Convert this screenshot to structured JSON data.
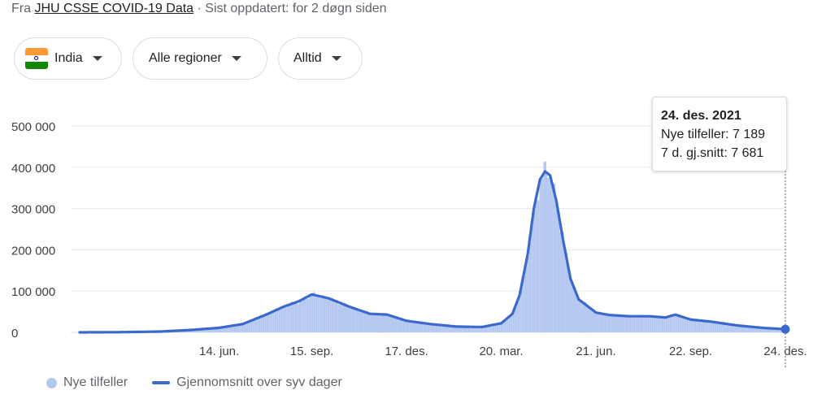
{
  "source": {
    "prefix": "Fra",
    "link": "JHU CSSE COVID-19 Data",
    "suffix": "· Sist oppdatert: for 2 døgn siden"
  },
  "filters": {
    "country": "India",
    "region": "Alle regioner",
    "period": "Alltid"
  },
  "colors": {
    "bars": "#b3c7f0",
    "line": "#3a68cc",
    "grid": "#e8eaed"
  },
  "tooltip": {
    "date": "24. des. 2021",
    "cases_label": "Nye tilfeller: 7 189",
    "avg_label": "7 d. gj.snitt: 7 681"
  },
  "legend": {
    "bars_label": "Nye tilfeller",
    "line_label": "Gjennomsnitt over syv dager"
  },
  "chart_data": {
    "type": "area",
    "title": "",
    "xlabel": "",
    "ylabel": "",
    "ylim": [
      0,
      500000
    ],
    "y_ticks": [
      {
        "value": 0,
        "label": "0"
      },
      {
        "value": 100000,
        "label": "100 000"
      },
      {
        "value": 200000,
        "label": "200 000"
      },
      {
        "value": 300000,
        "label": "300 000"
      },
      {
        "value": 400000,
        "label": "400 000"
      },
      {
        "value": 500000,
        "label": "500 000"
      }
    ],
    "x_ticks": [
      {
        "day": 137,
        "label": "14. jun."
      },
      {
        "day": 228,
        "label": "15. sep."
      },
      {
        "day": 321,
        "label": "17. des."
      },
      {
        "day": 414,
        "label": "20. mar."
      },
      {
        "day": 507,
        "label": "21. jun."
      },
      {
        "day": 600,
        "label": "22. sep."
      },
      {
        "day": 693,
        "label": "24. des."
      }
    ],
    "x_domain": [
      0,
      693
    ],
    "x_start_label": "",
    "series": [
      {
        "name": "Gjennomsnitt over syv dager",
        "points": [
          [
            0,
            0
          ],
          [
            40,
            500
          ],
          [
            80,
            2000
          ],
          [
            110,
            6000
          ],
          [
            137,
            11000
          ],
          [
            160,
            20000
          ],
          [
            185,
            45000
          ],
          [
            200,
            62000
          ],
          [
            215,
            75000
          ],
          [
            228,
            92000
          ],
          [
            245,
            82000
          ],
          [
            265,
            62000
          ],
          [
            285,
            45000
          ],
          [
            302,
            43000
          ],
          [
            321,
            28000
          ],
          [
            345,
            20000
          ],
          [
            370,
            14000
          ],
          [
            395,
            13000
          ],
          [
            414,
            22000
          ],
          [
            425,
            45000
          ],
          [
            432,
            90000
          ],
          [
            440,
            190000
          ],
          [
            446,
            300000
          ],
          [
            452,
            370000
          ],
          [
            457,
            390000
          ],
          [
            462,
            380000
          ],
          [
            468,
            320000
          ],
          [
            475,
            220000
          ],
          [
            482,
            130000
          ],
          [
            490,
            80000
          ],
          [
            507,
            48000
          ],
          [
            520,
            42000
          ],
          [
            540,
            39000
          ],
          [
            560,
            39000
          ],
          [
            575,
            36000
          ],
          [
            585,
            43000
          ],
          [
            600,
            31000
          ],
          [
            620,
            26000
          ],
          [
            645,
            17000
          ],
          [
            670,
            11000
          ],
          [
            693,
            7681
          ]
        ]
      },
      {
        "name": "Nye tilfeller",
        "peak_reported": 414000,
        "last_value": 7189
      }
    ],
    "legend_position": "bottom-left",
    "grid": true
  }
}
